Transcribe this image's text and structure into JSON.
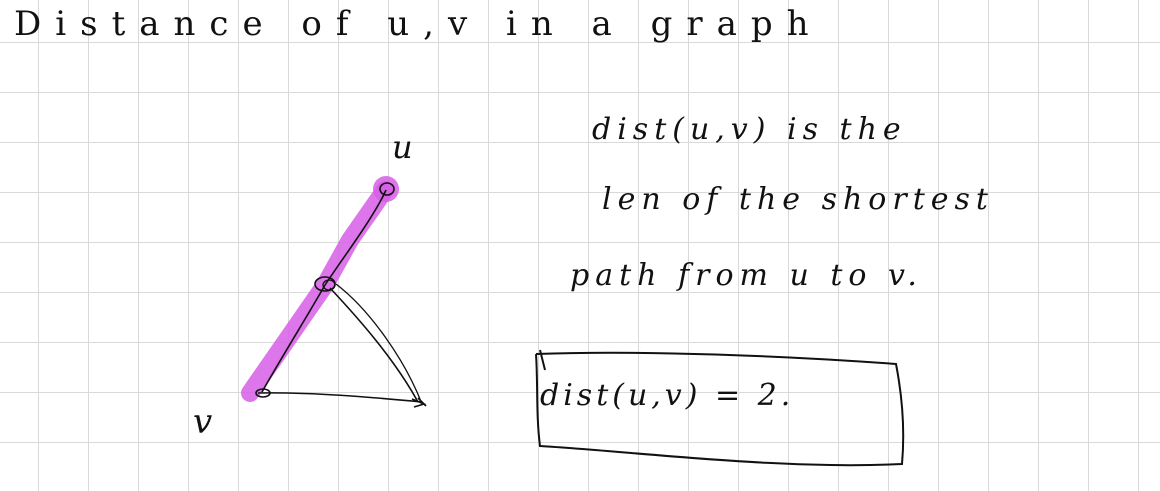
{
  "note": {
    "title": "Distance of u,v in a graph",
    "definition_lines": [
      "dist(u,v) is the",
      "len of the shortest",
      "path from u to v."
    ],
    "result": "dist(u,v) = 2."
  },
  "graph": {
    "node_labels": {
      "u": "u",
      "v": "v"
    },
    "colors": {
      "ink": "#111111",
      "highlight": "#d65ee6",
      "grid": "#d9d9d9"
    }
  }
}
